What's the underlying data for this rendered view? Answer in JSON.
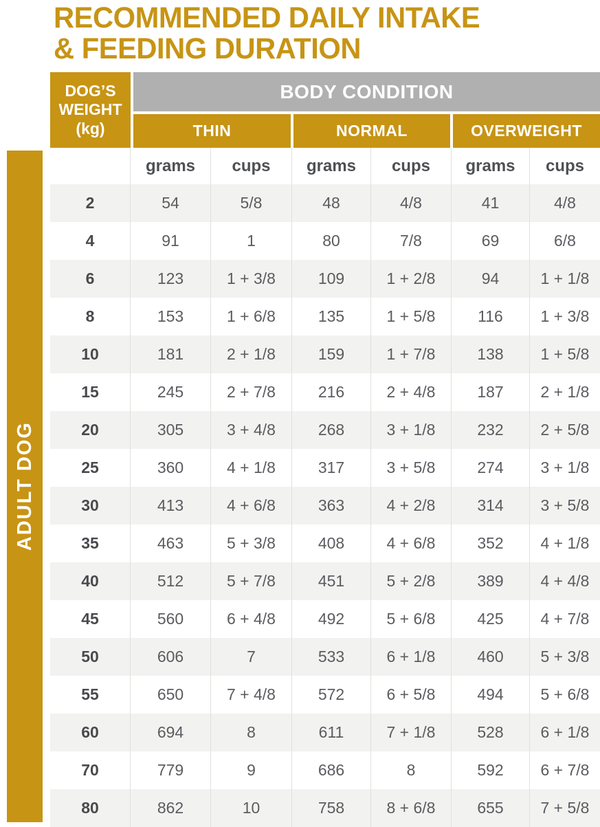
{
  "colors": {
    "gold": "#C79414",
    "header_gray": "#B0B0B0",
    "row_stripe": "#F2F2F0",
    "value_text": "#5B5C60",
    "weight_text": "#494A4E"
  },
  "title": {
    "line1": "RECOMMENDED DAILY INTAKE",
    "line2": "& FEEDING DURATION"
  },
  "sidebar": {
    "label": "ADULT DOG"
  },
  "table": {
    "weight_header_lines": [
      "DOG’S",
      "WEIGHT",
      "(kg)"
    ],
    "body_condition_label": "BODY CONDITION",
    "conditions": [
      "THIN",
      "NORMAL",
      "OVERWEIGHT"
    ],
    "units": [
      "grams",
      "cups",
      "grams",
      "cups",
      "grams",
      "cups"
    ],
    "rows": [
      {
        "weight": "2",
        "values": [
          "54",
          "5/8",
          "48",
          "4/8",
          "41",
          "4/8"
        ]
      },
      {
        "weight": "4",
        "values": [
          "91",
          "1",
          "80",
          "7/8",
          "69",
          "6/8"
        ]
      },
      {
        "weight": "6",
        "values": [
          "123",
          "1 + 3/8",
          "109",
          "1 + 2/8",
          "94",
          "1 + 1/8"
        ]
      },
      {
        "weight": "8",
        "values": [
          "153",
          "1 + 6/8",
          "135",
          "1 + 5/8",
          "116",
          "1 + 3/8"
        ]
      },
      {
        "weight": "10",
        "values": [
          "181",
          "2 + 1/8",
          "159",
          "1 + 7/8",
          "138",
          "1 + 5/8"
        ]
      },
      {
        "weight": "15",
        "values": [
          "245",
          "2 + 7/8",
          "216",
          "2 + 4/8",
          "187",
          "2 + 1/8"
        ]
      },
      {
        "weight": "20",
        "values": [
          "305",
          "3 + 4/8",
          "268",
          "3 + 1/8",
          "232",
          "2 + 5/8"
        ]
      },
      {
        "weight": "25",
        "values": [
          "360",
          "4 + 1/8",
          "317",
          "3 + 5/8",
          "274",
          "3 + 1/8"
        ]
      },
      {
        "weight": "30",
        "values": [
          "413",
          "4 + 6/8",
          "363",
          "4 + 2/8",
          "314",
          "3 + 5/8"
        ]
      },
      {
        "weight": "35",
        "values": [
          "463",
          "5 + 3/8",
          "408",
          "4 + 6/8",
          "352",
          "4 + 1/8"
        ]
      },
      {
        "weight": "40",
        "values": [
          "512",
          "5 + 7/8",
          "451",
          "5 + 2/8",
          "389",
          "4 + 4/8"
        ]
      },
      {
        "weight": "45",
        "values": [
          "560",
          "6 + 4/8",
          "492",
          "5 + 6/8",
          "425",
          "4 + 7/8"
        ]
      },
      {
        "weight": "50",
        "values": [
          "606",
          "7",
          "533",
          "6 + 1/8",
          "460",
          "5 + 3/8"
        ]
      },
      {
        "weight": "55",
        "values": [
          "650",
          "7 + 4/8",
          "572",
          "6 + 5/8",
          "494",
          "5 + 6/8"
        ]
      },
      {
        "weight": "60",
        "values": [
          "694",
          "8",
          "611",
          "7 + 1/8",
          "528",
          "6 + 1/8"
        ]
      },
      {
        "weight": "70",
        "values": [
          "779",
          "9",
          "686",
          "8",
          "592",
          "6 + 7/8"
        ]
      },
      {
        "weight": "80",
        "values": [
          "862",
          "10",
          "758",
          "8 + 6/8",
          "655",
          "7 + 5/8"
        ]
      }
    ]
  }
}
